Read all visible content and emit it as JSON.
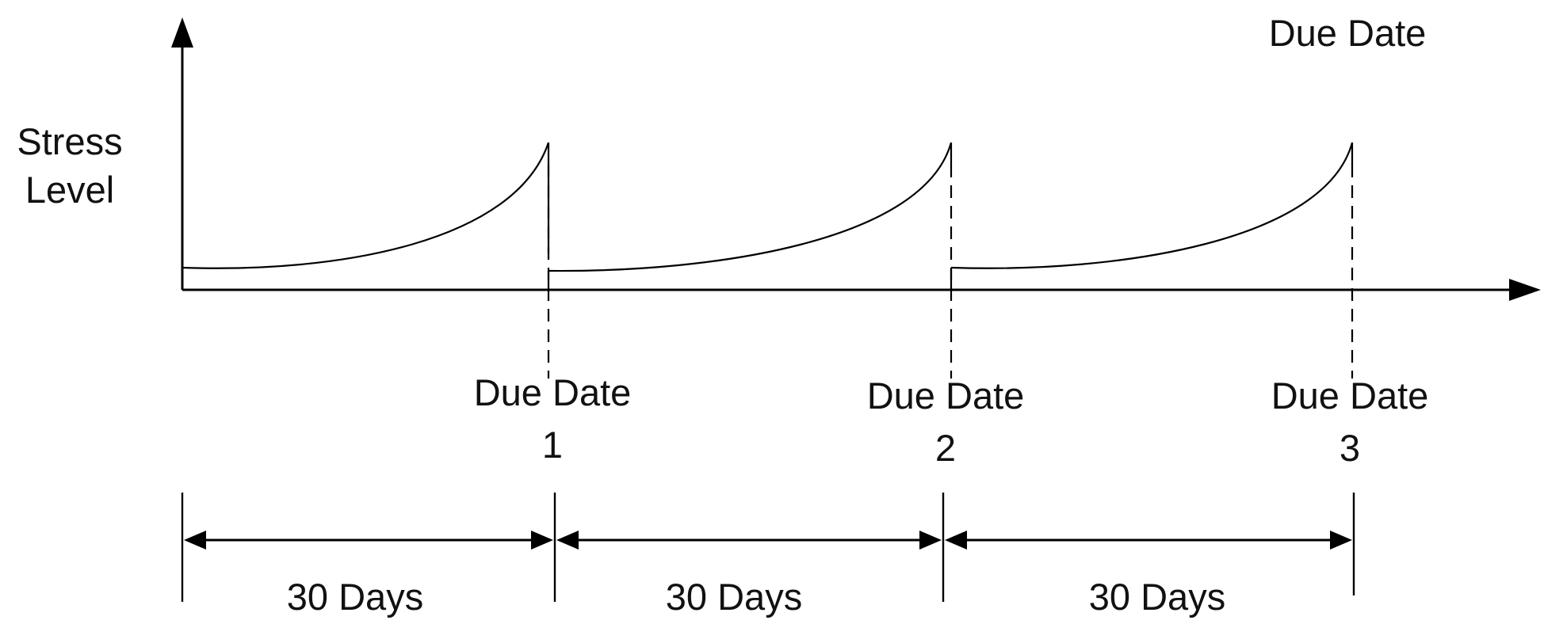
{
  "y_axis_label": {
    "line1": "Stress",
    "line2": "Level"
  },
  "top_right_label": "Due Date",
  "due_dates": [
    {
      "label": "Due Date",
      "number": "1"
    },
    {
      "label": "Due Date",
      "number": "2"
    },
    {
      "label": "Due Date",
      "number": "3"
    }
  ],
  "intervals": [
    {
      "label": "30 Days"
    },
    {
      "label": "30 Days"
    },
    {
      "label": "30 Days"
    }
  ]
}
